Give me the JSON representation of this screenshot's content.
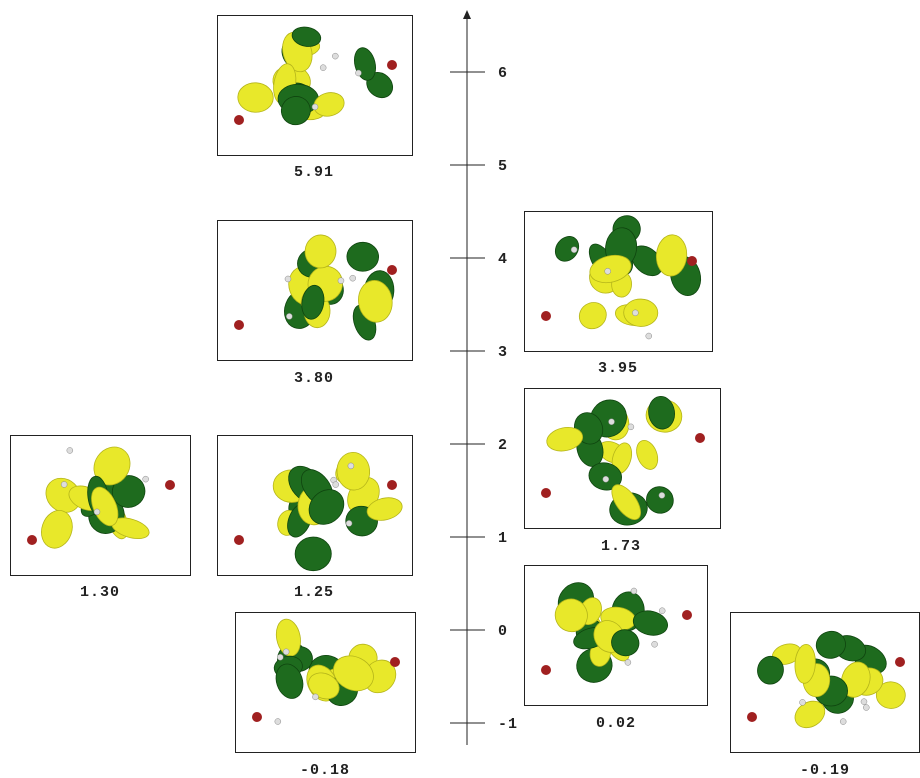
{
  "axis": {
    "ticks": [
      -1,
      0,
      1,
      2,
      3,
      4,
      5,
      6
    ]
  },
  "panels": [
    {
      "label": "5.91"
    },
    {
      "label": "3.80"
    },
    {
      "label": "3.95"
    },
    {
      "label": "1.73"
    },
    {
      "label": "1.30"
    },
    {
      "label": "1.25"
    },
    {
      "label": "0.02"
    },
    {
      "label": "-0.18"
    },
    {
      "label": "-0.19"
    }
  ]
}
